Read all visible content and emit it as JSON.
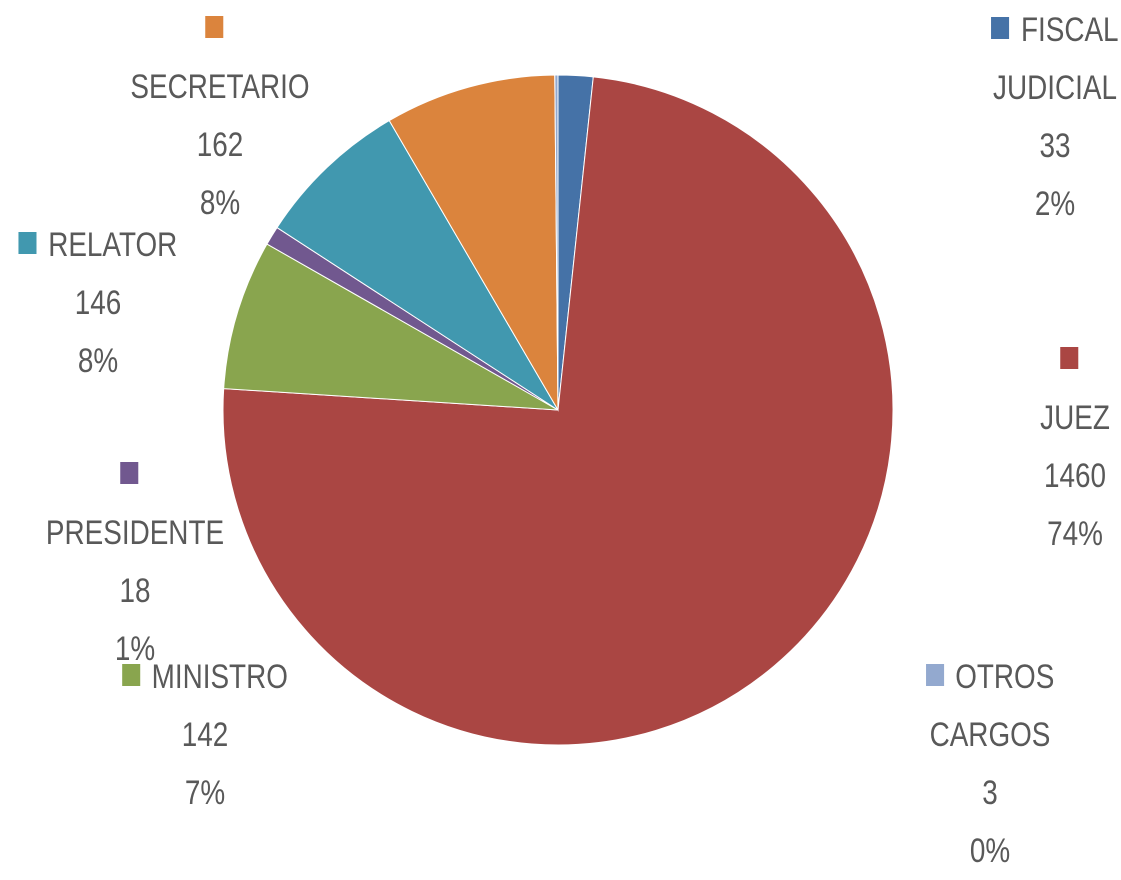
{
  "chart_data": {
    "type": "pie",
    "categories": [
      "FISCAL JUDICIAL",
      "JUEZ",
      "MINISTRO",
      "PRESIDENTE",
      "RELATOR",
      "SECRETARIO",
      "OTROS CARGOS"
    ],
    "values": [
      33,
      1460,
      142,
      18,
      146,
      162,
      3
    ],
    "percent_labels": [
      "2%",
      "74%",
      "7%",
      "1%",
      "8%",
      "8%",
      "0%"
    ],
    "colors": [
      "#4572a7",
      "#aa4643",
      "#89a54e",
      "#71588f",
      "#4198af",
      "#db843d",
      "#93a9cf"
    ]
  }
}
